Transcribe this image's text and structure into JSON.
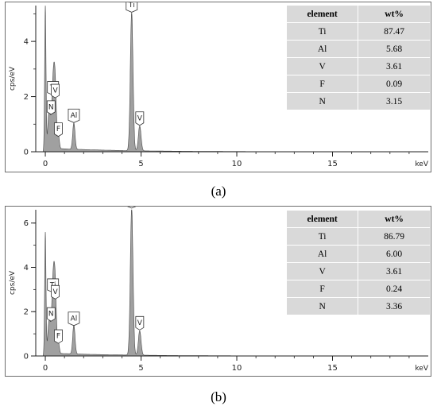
{
  "panels": [
    {
      "caption": "(a)",
      "table": {
        "headers": [
          "element",
          "wt%"
        ],
        "rows": [
          [
            "Ti",
            "87.47"
          ],
          [
            "Al",
            "5.68"
          ],
          [
            "V",
            "3.61"
          ],
          [
            "F",
            "0.09"
          ],
          [
            "N",
            "3.15"
          ]
        ]
      }
    },
    {
      "caption": "(b)",
      "table": {
        "headers": [
          "element",
          "wt%"
        ],
        "rows": [
          [
            "Ti",
            "86.79"
          ],
          [
            "Al",
            "6.00"
          ],
          [
            "V",
            "3.61"
          ],
          [
            "F",
            "0.24"
          ],
          [
            "N",
            "3.36"
          ]
        ]
      }
    }
  ],
  "chart_data": [
    {
      "type": "area",
      "xlabel": "keV",
      "ylabel": "cps/eV",
      "xlim": [
        -0.5,
        20
      ],
      "ylim": [
        0,
        5.3
      ],
      "xticks": [
        0,
        5,
        10,
        15
      ],
      "yticks": [
        0,
        2,
        4
      ],
      "peaks": [
        {
          "x": 0.0,
          "y": 5.3,
          "w": 0.035
        },
        {
          "x": 0.2,
          "y": 1.4,
          "w": 0.07
        },
        {
          "x": 0.4,
          "y": 2.0,
          "w": 0.07
        },
        {
          "x": 0.45,
          "y": 0.6,
          "w": 0.06
        },
        {
          "x": 0.52,
          "y": 1.9,
          "w": 0.06
        },
        {
          "x": 0.68,
          "y": 0.5,
          "w": 0.05
        },
        {
          "x": 1.49,
          "y": 0.95,
          "w": 0.06
        },
        {
          "x": 4.51,
          "y": 5.0,
          "w": 0.07
        },
        {
          "x": 4.93,
          "y": 0.9,
          "w": 0.07
        }
      ],
      "peak_labels": [
        {
          "text": "Ti",
          "x": 4.51,
          "y": 5.0
        },
        {
          "text": "Ti",
          "x": 0.4,
          "y": 2.0
        },
        {
          "text": "V",
          "x": 0.52,
          "y": 1.9
        },
        {
          "text": "N",
          "x": 0.3,
          "y": 1.3
        },
        {
          "text": "F",
          "x": 0.68,
          "y": 0.5
        },
        {
          "text": "Al",
          "x": 1.49,
          "y": 1.0
        },
        {
          "text": "V",
          "x": 4.93,
          "y": 0.9
        }
      ]
    },
    {
      "type": "area",
      "xlabel": "keV",
      "ylabel": "cps/eV",
      "xlim": [
        -0.5,
        20
      ],
      "ylim": [
        0,
        6.6
      ],
      "xticks": [
        0,
        5,
        10,
        15
      ],
      "yticks": [
        0,
        2,
        4,
        6
      ],
      "peaks": [
        {
          "x": 0.0,
          "y": 5.6,
          "w": 0.035
        },
        {
          "x": 0.2,
          "y": 1.5,
          "w": 0.07
        },
        {
          "x": 0.4,
          "y": 2.8,
          "w": 0.07
        },
        {
          "x": 0.45,
          "y": 0.7,
          "w": 0.06
        },
        {
          "x": 0.52,
          "y": 2.5,
          "w": 0.06
        },
        {
          "x": 0.68,
          "y": 0.5,
          "w": 0.05
        },
        {
          "x": 1.49,
          "y": 1.3,
          "w": 0.06
        },
        {
          "x": 4.51,
          "y": 6.6,
          "w": 0.07
        },
        {
          "x": 4.93,
          "y": 1.1,
          "w": 0.07
        }
      ],
      "peak_labels": [
        {
          "text": "Ti",
          "x": 4.51,
          "y": 6.6
        },
        {
          "text": "Ti",
          "x": 0.4,
          "y": 2.8
        },
        {
          "text": "V",
          "x": 0.52,
          "y": 2.5
        },
        {
          "text": "N",
          "x": 0.3,
          "y": 1.5
        },
        {
          "text": "F",
          "x": 0.68,
          "y": 0.5
        },
        {
          "text": "Al",
          "x": 1.49,
          "y": 1.3
        },
        {
          "text": "V",
          "x": 4.93,
          "y": 1.1
        }
      ]
    }
  ]
}
